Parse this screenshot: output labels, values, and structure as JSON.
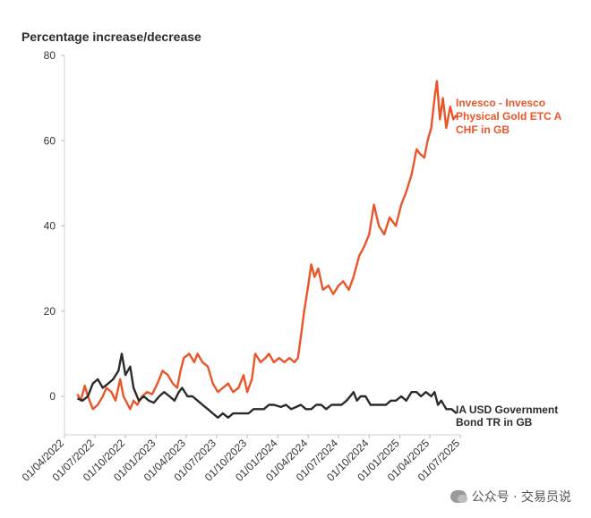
{
  "chart_data": {
    "type": "line",
    "ylabel": "Percentage increase/decrease",
    "ylim": [
      -5,
      80
    ],
    "yticks": [
      0,
      20,
      40,
      60,
      80
    ],
    "xlim": [
      "2022-04-01",
      "2025-07-01"
    ],
    "xticks": [
      "01/04/2022",
      "01/07/2022",
      "01/10/2022",
      "01/01/2023",
      "01/04/2023",
      "01/07/2023",
      "01/10/2023",
      "01/01/2024",
      "01/04/2024",
      "01/07/2024",
      "01/10/2024",
      "01/01/2025",
      "01/04/2025",
      "01/07/2025"
    ],
    "grid": false,
    "series": [
      {
        "name": "Invesco - Invesco Physical Gold ETC A CHF in GB",
        "color": "#e8562a",
        "points": [
          [
            "2022-05-10",
            0.5
          ],
          [
            "2022-05-20",
            -1
          ],
          [
            "2022-06-01",
            2.5
          ],
          [
            "2022-06-10",
            0
          ],
          [
            "2022-06-25",
            -3
          ],
          [
            "2022-07-10",
            -2
          ],
          [
            "2022-07-25",
            0
          ],
          [
            "2022-08-05",
            2
          ],
          [
            "2022-08-20",
            1
          ],
          [
            "2022-09-01",
            -1
          ],
          [
            "2022-09-15",
            4
          ],
          [
            "2022-09-25",
            0
          ],
          [
            "2022-10-05",
            -1.5
          ],
          [
            "2022-10-15",
            -3
          ],
          [
            "2022-10-25",
            -1
          ],
          [
            "2022-11-05",
            -2
          ],
          [
            "2022-11-20",
            0
          ],
          [
            "2022-12-05",
            1
          ],
          [
            "2022-12-20",
            0.5
          ],
          [
            "2023-01-05",
            3
          ],
          [
            "2023-01-20",
            6
          ],
          [
            "2023-02-05",
            5
          ],
          [
            "2023-02-20",
            3
          ],
          [
            "2023-03-05",
            2
          ],
          [
            "2023-03-15",
            6
          ],
          [
            "2023-03-25",
            9
          ],
          [
            "2023-04-10",
            10
          ],
          [
            "2023-04-25",
            8
          ],
          [
            "2023-05-05",
            10
          ],
          [
            "2023-05-20",
            8
          ],
          [
            "2023-06-05",
            7
          ],
          [
            "2023-06-20",
            3
          ],
          [
            "2023-07-05",
            1
          ],
          [
            "2023-07-20",
            2
          ],
          [
            "2023-08-05",
            3
          ],
          [
            "2023-08-20",
            1
          ],
          [
            "2023-09-05",
            2
          ],
          [
            "2023-09-20",
            5
          ],
          [
            "2023-10-01",
            1
          ],
          [
            "2023-10-15",
            4
          ],
          [
            "2023-10-25",
            10
          ],
          [
            "2023-11-10",
            8
          ],
          [
            "2023-11-25",
            9
          ],
          [
            "2023-12-05",
            10
          ],
          [
            "2023-12-20",
            8
          ],
          [
            "2024-01-05",
            9
          ],
          [
            "2024-01-20",
            8
          ],
          [
            "2024-02-05",
            9
          ],
          [
            "2024-02-20",
            8
          ],
          [
            "2024-03-01",
            9
          ],
          [
            "2024-03-10",
            14
          ],
          [
            "2024-03-20",
            20
          ],
          [
            "2024-04-01",
            26
          ],
          [
            "2024-04-10",
            31
          ],
          [
            "2024-04-20",
            28
          ],
          [
            "2024-05-01",
            30
          ],
          [
            "2024-05-15",
            25
          ],
          [
            "2024-06-01",
            26
          ],
          [
            "2024-06-15",
            24
          ],
          [
            "2024-07-01",
            26
          ],
          [
            "2024-07-15",
            27
          ],
          [
            "2024-08-01",
            25
          ],
          [
            "2024-08-15",
            28
          ],
          [
            "2024-09-01",
            33
          ],
          [
            "2024-09-15",
            35
          ],
          [
            "2024-10-01",
            38
          ],
          [
            "2024-10-15",
            45
          ],
          [
            "2024-10-30",
            40
          ],
          [
            "2024-11-15",
            38
          ],
          [
            "2024-12-01",
            42
          ],
          [
            "2024-12-20",
            40
          ],
          [
            "2025-01-05",
            45
          ],
          [
            "2025-01-20",
            48
          ],
          [
            "2025-02-05",
            52
          ],
          [
            "2025-02-20",
            58
          ],
          [
            "2025-03-01",
            57
          ],
          [
            "2025-03-15",
            56
          ],
          [
            "2025-03-25",
            60
          ],
          [
            "2025-04-05",
            63
          ],
          [
            "2025-04-15",
            70
          ],
          [
            "2025-04-22",
            74
          ],
          [
            "2025-05-01",
            65
          ],
          [
            "2025-05-10",
            70
          ],
          [
            "2025-05-20",
            63
          ],
          [
            "2025-06-01",
            68
          ],
          [
            "2025-06-10",
            65
          ],
          [
            "2025-06-20",
            66
          ]
        ]
      },
      {
        "name": "IA USD Government Bond TR in GB",
        "color": "#2b2b2b",
        "points": [
          [
            "2022-05-10",
            -0.5
          ],
          [
            "2022-05-25",
            -1
          ],
          [
            "2022-06-10",
            0
          ],
          [
            "2022-06-25",
            3
          ],
          [
            "2022-07-10",
            4
          ],
          [
            "2022-07-25",
            2
          ],
          [
            "2022-08-10",
            3
          ],
          [
            "2022-08-25",
            4
          ],
          [
            "2022-09-10",
            6
          ],
          [
            "2022-09-20",
            10
          ],
          [
            "2022-10-01",
            5
          ],
          [
            "2022-10-15",
            7
          ],
          [
            "2022-10-25",
            2
          ],
          [
            "2022-11-10",
            -1
          ],
          [
            "2022-11-25",
            0
          ],
          [
            "2022-12-10",
            -1
          ],
          [
            "2022-12-25",
            -1.5
          ],
          [
            "2023-01-10",
            0
          ],
          [
            "2023-01-25",
            1
          ],
          [
            "2023-02-10",
            0
          ],
          [
            "2023-02-25",
            -1
          ],
          [
            "2023-03-10",
            1
          ],
          [
            "2023-03-20",
            2
          ],
          [
            "2023-04-05",
            0
          ],
          [
            "2023-04-20",
            0
          ],
          [
            "2023-05-05",
            -1
          ],
          [
            "2023-05-20",
            -2
          ],
          [
            "2023-06-05",
            -3
          ],
          [
            "2023-06-20",
            -4
          ],
          [
            "2023-07-05",
            -5
          ],
          [
            "2023-07-20",
            -4
          ],
          [
            "2023-08-05",
            -5
          ],
          [
            "2023-08-20",
            -4
          ],
          [
            "2023-09-05",
            -4
          ],
          [
            "2023-09-20",
            -4
          ],
          [
            "2023-10-05",
            -4
          ],
          [
            "2023-10-20",
            -3
          ],
          [
            "2023-11-05",
            -3
          ],
          [
            "2023-11-20",
            -3
          ],
          [
            "2023-12-05",
            -2
          ],
          [
            "2023-12-20",
            -2
          ],
          [
            "2024-01-10",
            -2.5
          ],
          [
            "2024-01-25",
            -2
          ],
          [
            "2024-02-10",
            -3
          ],
          [
            "2024-02-25",
            -2.5
          ],
          [
            "2024-03-10",
            -2
          ],
          [
            "2024-03-25",
            -3
          ],
          [
            "2024-04-10",
            -3
          ],
          [
            "2024-04-25",
            -2
          ],
          [
            "2024-05-10",
            -2
          ],
          [
            "2024-05-25",
            -3
          ],
          [
            "2024-06-10",
            -2
          ],
          [
            "2024-06-25",
            -2
          ],
          [
            "2024-07-10",
            -2
          ],
          [
            "2024-07-25",
            -1
          ],
          [
            "2024-08-05",
            0
          ],
          [
            "2024-08-15",
            1
          ],
          [
            "2024-08-25",
            -1
          ],
          [
            "2024-09-05",
            0
          ],
          [
            "2024-09-20",
            0
          ],
          [
            "2024-10-05",
            -2
          ],
          [
            "2024-10-20",
            -2
          ],
          [
            "2024-11-05",
            -2
          ],
          [
            "2024-11-20",
            -2
          ],
          [
            "2024-12-05",
            -1
          ],
          [
            "2024-12-20",
            -1
          ],
          [
            "2025-01-05",
            0
          ],
          [
            "2025-01-20",
            -1
          ],
          [
            "2025-02-05",
            1
          ],
          [
            "2025-02-20",
            1
          ],
          [
            "2025-03-05",
            0
          ],
          [
            "2025-03-20",
            1
          ],
          [
            "2025-04-05",
            0
          ],
          [
            "2025-04-15",
            1
          ],
          [
            "2025-04-25",
            -2
          ],
          [
            "2025-05-05",
            -1
          ],
          [
            "2025-05-20",
            -3
          ],
          [
            "2025-06-05",
            -3
          ],
          [
            "2025-06-20",
            -4
          ]
        ]
      }
    ],
    "legend_placement": "right, at series ends"
  },
  "legend": {
    "gold": [
      "Invesco - Invesco",
      "Physical Gold ETC A",
      "CHF in GB"
    ],
    "bond": [
      "IA USD Government",
      "Bond TR in GB"
    ]
  },
  "watermark": {
    "text": "公众号 · 交易员说",
    "icon": "wechat-icon"
  }
}
